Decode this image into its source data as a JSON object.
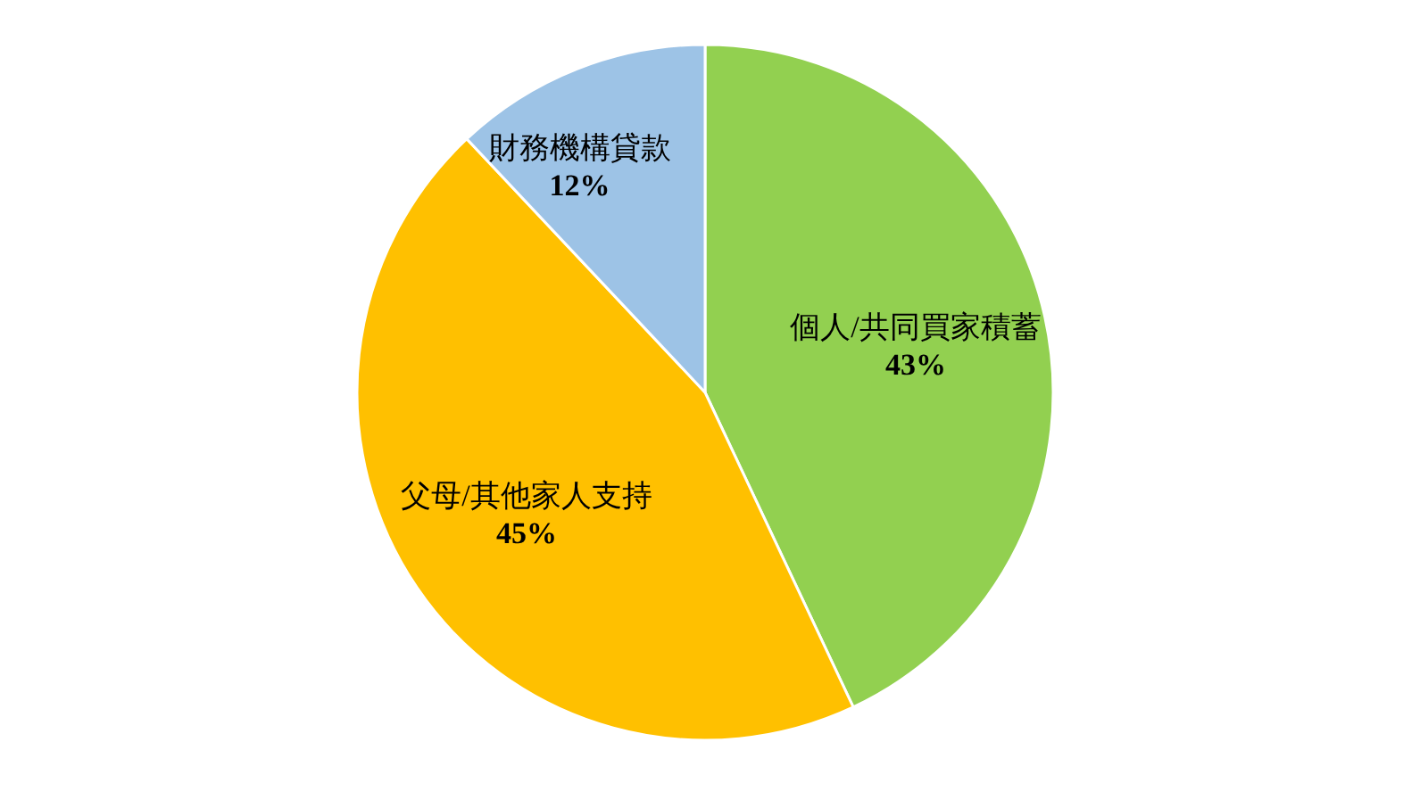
{
  "chart_data": {
    "type": "pie",
    "categories": [
      "個人/共同買家積蓄",
      "父母/其他家人支持",
      "財務機構貸款"
    ],
    "values": [
      43,
      45,
      12
    ],
    "value_labels": [
      "43%",
      "45%",
      "12%"
    ],
    "colors": [
      "#92d050",
      "#ffc000",
      "#9dc3e6"
    ]
  }
}
